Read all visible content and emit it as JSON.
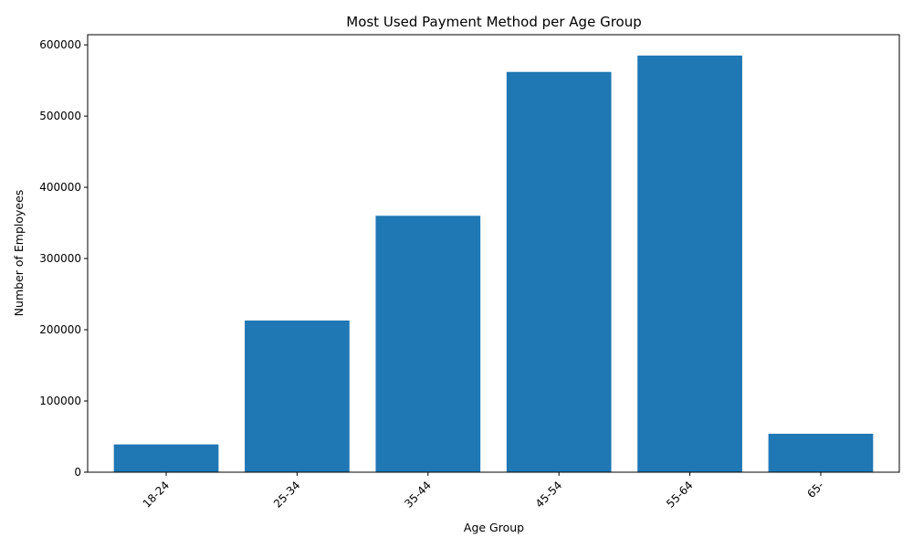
{
  "chart_data": {
    "type": "bar",
    "title": "Most Used Payment Method per Age Group",
    "xlabel": "Age Group",
    "ylabel": "Number of Employees",
    "categories": [
      "18-24",
      "25-34",
      "35-44",
      "45-54",
      "55-64",
      "65-"
    ],
    "values": [
      39000,
      213000,
      360000,
      562000,
      585000,
      54000
    ],
    "ylim": [
      0,
      614250
    ],
    "yticks": [
      0,
      100000,
      200000,
      300000,
      400000,
      500000,
      600000
    ],
    "grid": false,
    "legend": "none",
    "bar_color": "#1f77b4"
  }
}
